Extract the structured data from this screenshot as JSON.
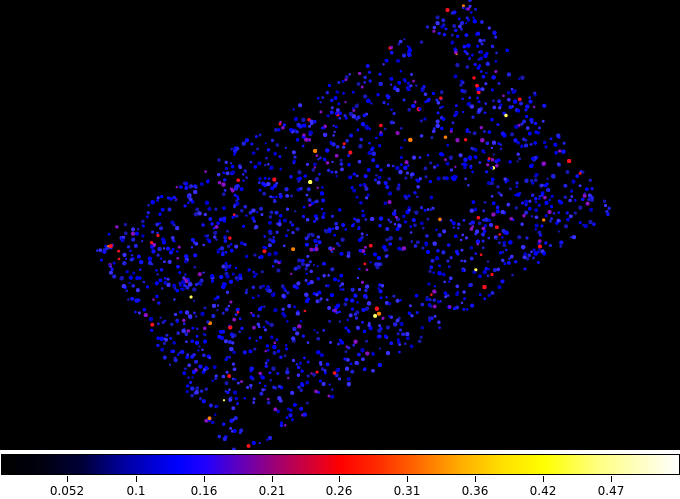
{
  "image": {
    "description_free": true,
    "background_color": "#000000",
    "colormap_stops": [
      "#000000",
      "#0000ff",
      "#b00060",
      "#ff0000",
      "#ff8000",
      "#ffff00",
      "#ffffff"
    ]
  },
  "colorbar": {
    "ticks": [
      "0.052",
      "0.1",
      "0.16",
      "0.21",
      "0.26",
      "0.31",
      "0.36",
      "0.42",
      "0.47"
    ]
  }
}
